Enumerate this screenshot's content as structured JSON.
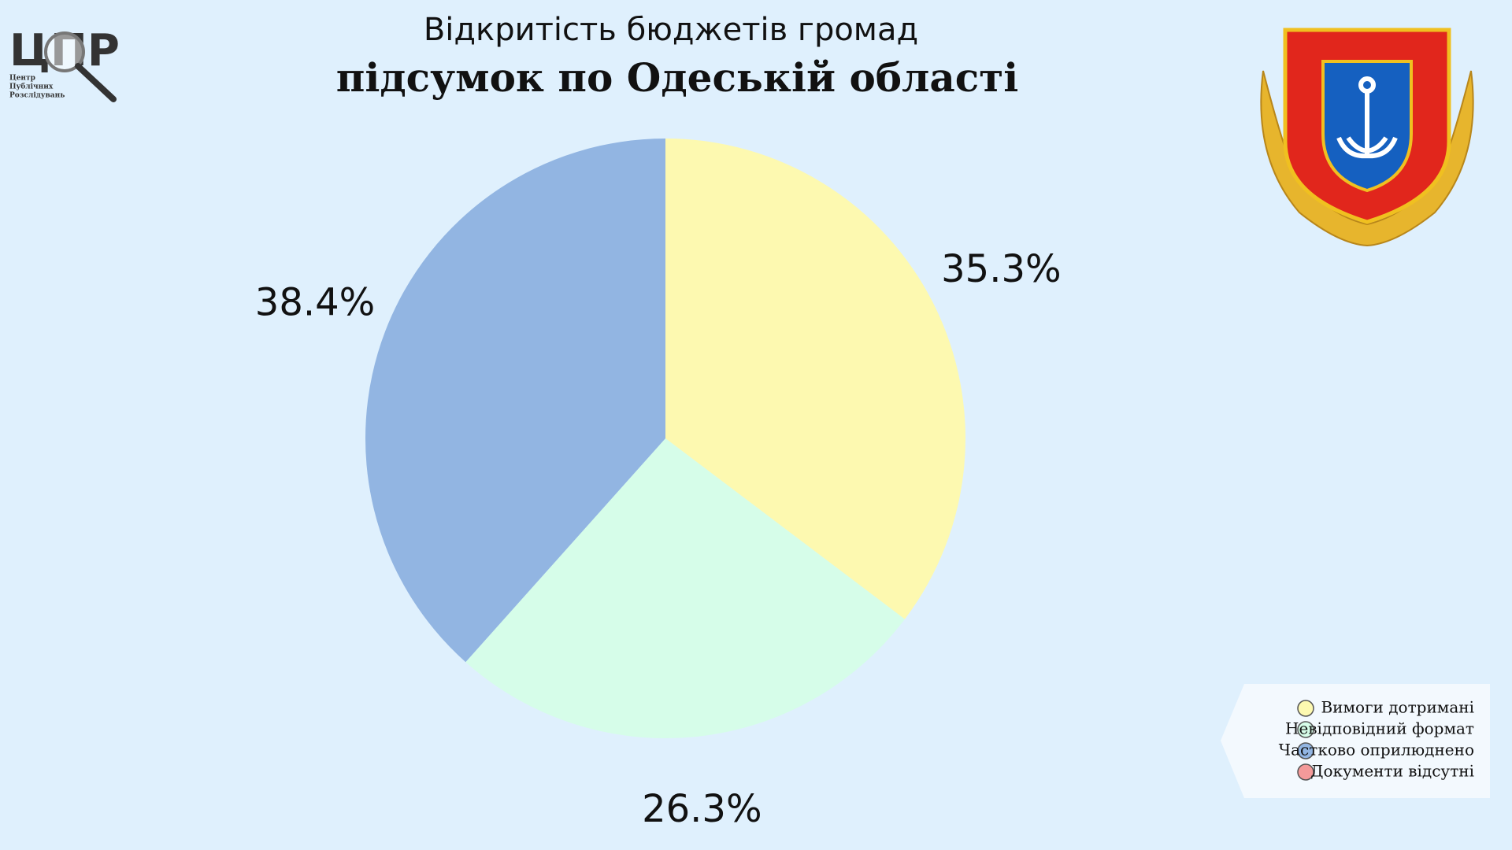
{
  "logo": {
    "text": "ЦПР",
    "subtitle_lines": [
      "Центр",
      "Публічних",
      "Розслідувань"
    ]
  },
  "chart_data": {
    "type": "pie",
    "title": "Відкритість бюджетів громад",
    "subtitle": "підсумок по Одеській області",
    "categories": [
      "Вимоги дотримані",
      "Невідповідний формат",
      "Частково оприлюднено",
      "Документи відсутні"
    ],
    "values": [
      35.3,
      26.3,
      38.4,
      0
    ],
    "value_labels": [
      "35.3%",
      "26.3%",
      "38.4%",
      null
    ],
    "colors": [
      "#fdf9b0",
      "#d6fde9",
      "#92b5e2",
      "#f49a9a"
    ],
    "legend": "bottom-right"
  }
}
